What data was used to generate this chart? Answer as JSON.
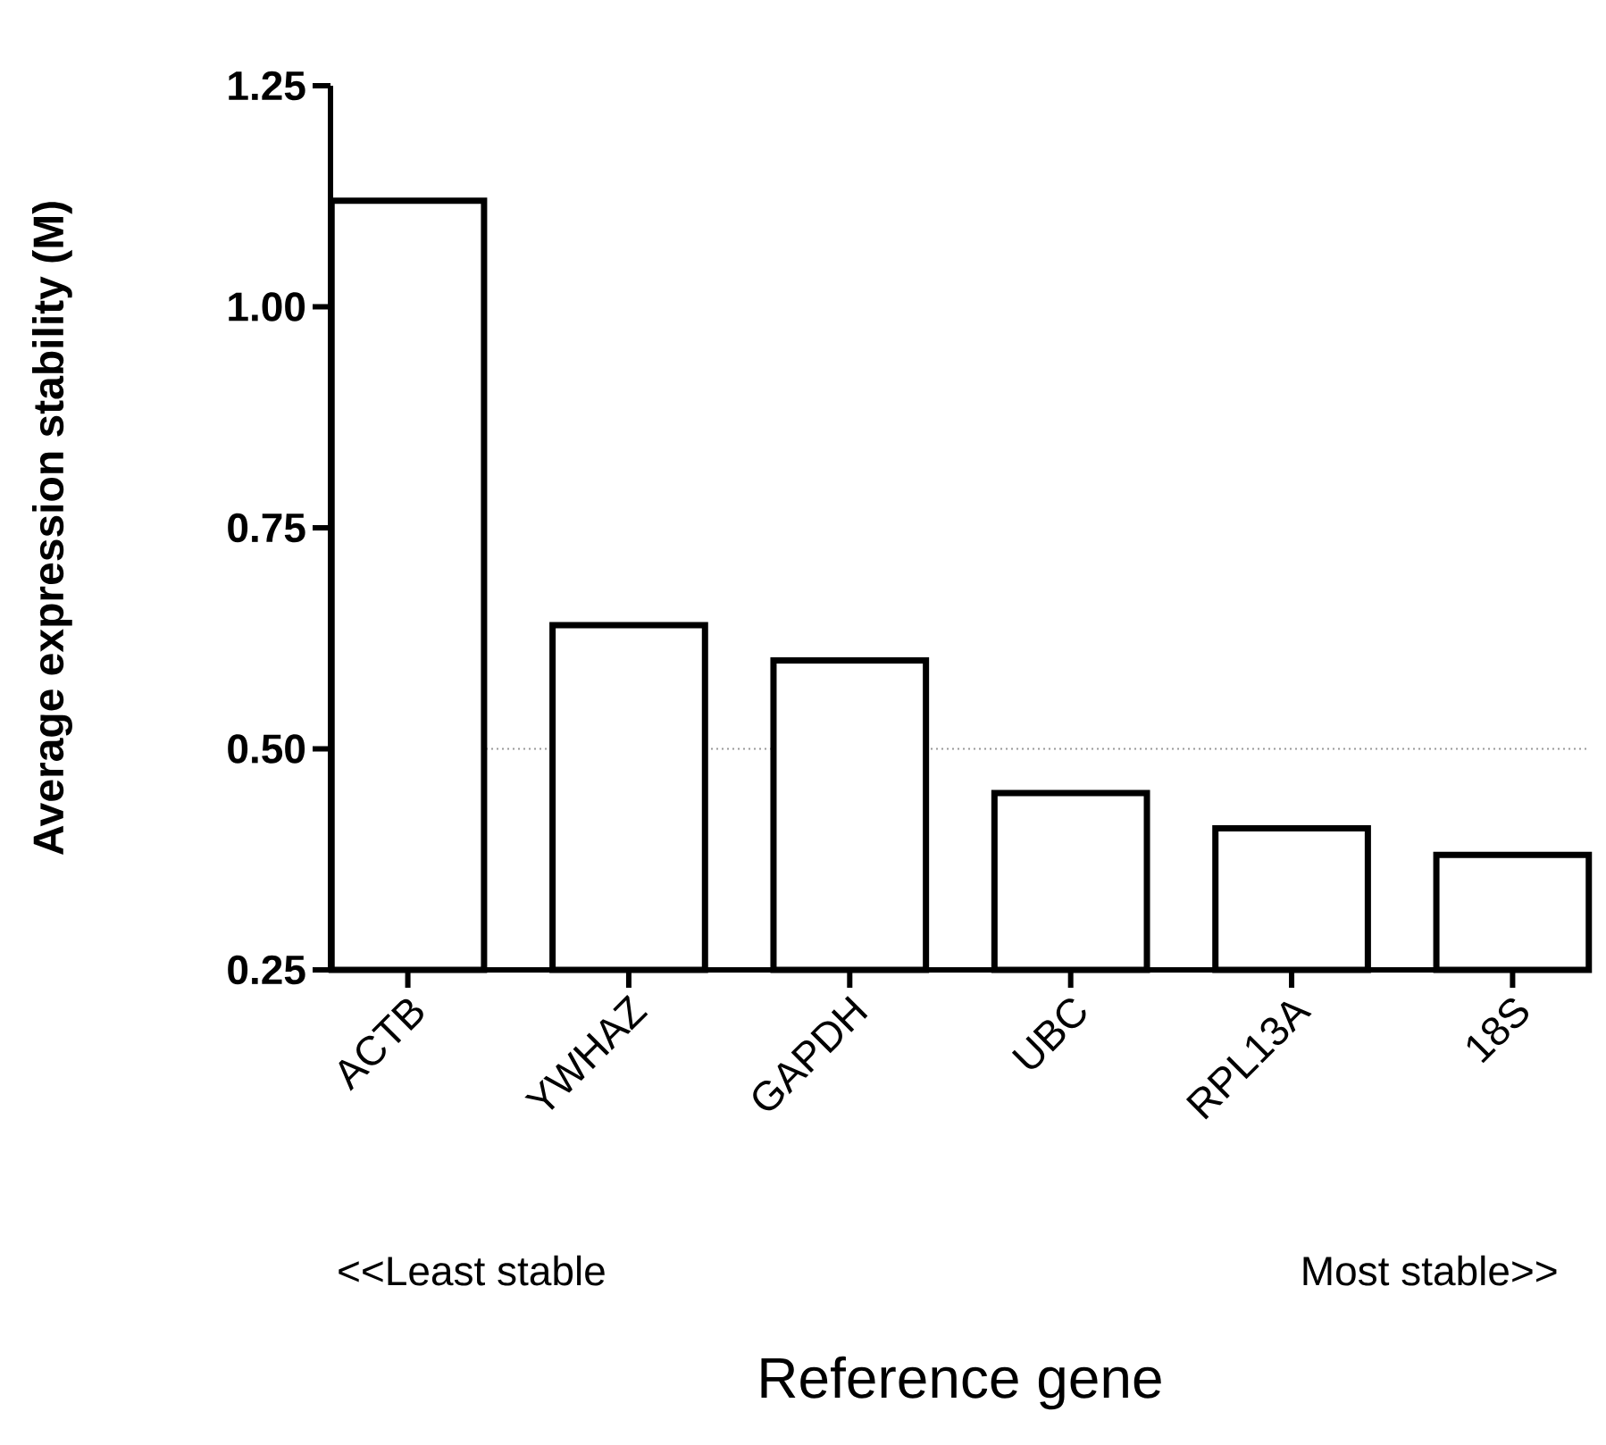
{
  "chart_data": {
    "type": "bar",
    "xlabel": "Reference gene",
    "ylabel": "Average expression stability (M)",
    "categories": [
      "ACTB",
      "YWHAZ",
      "GAPDH",
      "UBC",
      "RPL13A",
      "18S"
    ],
    "values": [
      1.12,
      0.64,
      0.6,
      0.45,
      0.41,
      0.38
    ],
    "color": "#ffffff",
    "ylim": [
      0.25,
      1.25
    ],
    "yticks": [
      {
        "value": 0.25,
        "label": "0.25"
      },
      {
        "value": 0.5,
        "label": "0.50"
      },
      {
        "value": 0.75,
        "label": "0.75"
      },
      {
        "value": 1.0,
        "label": "1.00"
      },
      {
        "value": 1.25,
        "label": "1.25"
      }
    ],
    "ref_lines": [
      {
        "axis": "y",
        "value": 0.5,
        "color": "#999999",
        "line_style": "dotted"
      }
    ],
    "annotations": [
      "<<Least stable",
      "Most stable>>"
    ],
    "grid": false
  }
}
